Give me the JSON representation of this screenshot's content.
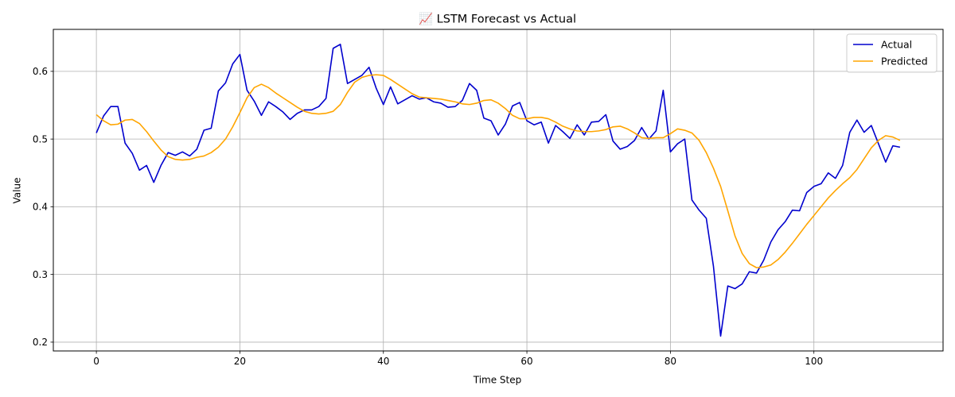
{
  "chart_data": {
    "type": "line",
    "title": "📈 LSTM Forecast vs Actual",
    "xlabel": "Time Step",
    "ylabel": "Value",
    "xlim": [
      -6,
      118
    ],
    "ylim": [
      0.187,
      0.662
    ],
    "xticks": [
      0,
      20,
      40,
      60,
      80,
      100
    ],
    "yticks": [
      0.2,
      0.3,
      0.4,
      0.5,
      0.6
    ],
    "yticks_labels": [
      "0.2",
      "0.3",
      "0.4",
      "0.5",
      "0.6"
    ],
    "grid": true,
    "legend": "top-right",
    "series": [
      {
        "name": "Actual",
        "color": "#0000cd",
        "values": [
          0.509,
          0.534,
          0.548,
          0.548,
          0.494,
          0.479,
          0.454,
          0.461,
          0.436,
          0.461,
          0.48,
          0.476,
          0.481,
          0.475,
          0.485,
          0.513,
          0.516,
          0.571,
          0.583,
          0.611,
          0.625,
          0.572,
          0.556,
          0.535,
          0.555,
          0.548,
          0.54,
          0.529,
          0.538,
          0.543,
          0.543,
          0.548,
          0.56,
          0.634,
          0.64,
          0.582,
          0.588,
          0.594,
          0.606,
          0.575,
          0.551,
          0.577,
          0.552,
          0.558,
          0.564,
          0.559,
          0.561,
          0.555,
          0.553,
          0.547,
          0.548,
          0.557,
          0.582,
          0.572,
          0.531,
          0.527,
          0.506,
          0.522,
          0.549,
          0.554,
          0.527,
          0.521,
          0.525,
          0.494,
          0.52,
          0.511,
          0.501,
          0.521,
          0.506,
          0.525,
          0.526,
          0.536,
          0.497,
          0.485,
          0.489,
          0.498,
          0.517,
          0.5,
          0.512,
          0.572,
          0.481,
          0.493,
          0.5,
          0.41,
          0.395,
          0.383,
          0.312,
          0.209,
          0.283,
          0.279,
          0.286,
          0.304,
          0.302,
          0.321,
          0.348,
          0.366,
          0.378,
          0.395,
          0.394,
          0.421,
          0.43,
          0.434,
          0.45,
          0.442,
          0.461,
          0.51,
          0.528,
          0.51,
          0.52,
          0.493,
          0.466,
          0.49,
          0.488
        ]
      },
      {
        "name": "Predicted",
        "color": "#ffa500",
        "values": [
          0.536,
          0.527,
          0.521,
          0.522,
          0.528,
          0.529,
          0.523,
          0.511,
          0.497,
          0.484,
          0.474,
          0.47,
          0.469,
          0.47,
          0.473,
          0.475,
          0.48,
          0.488,
          0.5,
          0.518,
          0.539,
          0.561,
          0.576,
          0.581,
          0.576,
          0.568,
          0.561,
          0.554,
          0.547,
          0.541,
          0.538,
          0.537,
          0.538,
          0.541,
          0.551,
          0.569,
          0.584,
          0.591,
          0.594,
          0.595,
          0.594,
          0.588,
          0.581,
          0.574,
          0.567,
          0.562,
          0.561,
          0.56,
          0.559,
          0.557,
          0.555,
          0.552,
          0.551,
          0.553,
          0.557,
          0.558,
          0.553,
          0.545,
          0.535,
          0.53,
          0.53,
          0.532,
          0.532,
          0.53,
          0.525,
          0.519,
          0.515,
          0.512,
          0.511,
          0.511,
          0.512,
          0.514,
          0.518,
          0.519,
          0.515,
          0.509,
          0.502,
          0.501,
          0.502,
          0.502,
          0.508,
          0.515,
          0.513,
          0.509,
          0.498,
          0.48,
          0.457,
          0.43,
          0.394,
          0.357,
          0.331,
          0.316,
          0.31,
          0.311,
          0.314,
          0.322,
          0.333,
          0.346,
          0.36,
          0.374,
          0.387,
          0.4,
          0.413,
          0.424,
          0.434,
          0.443,
          0.455,
          0.471,
          0.487,
          0.498,
          0.505,
          0.503,
          0.498
        ]
      }
    ]
  }
}
